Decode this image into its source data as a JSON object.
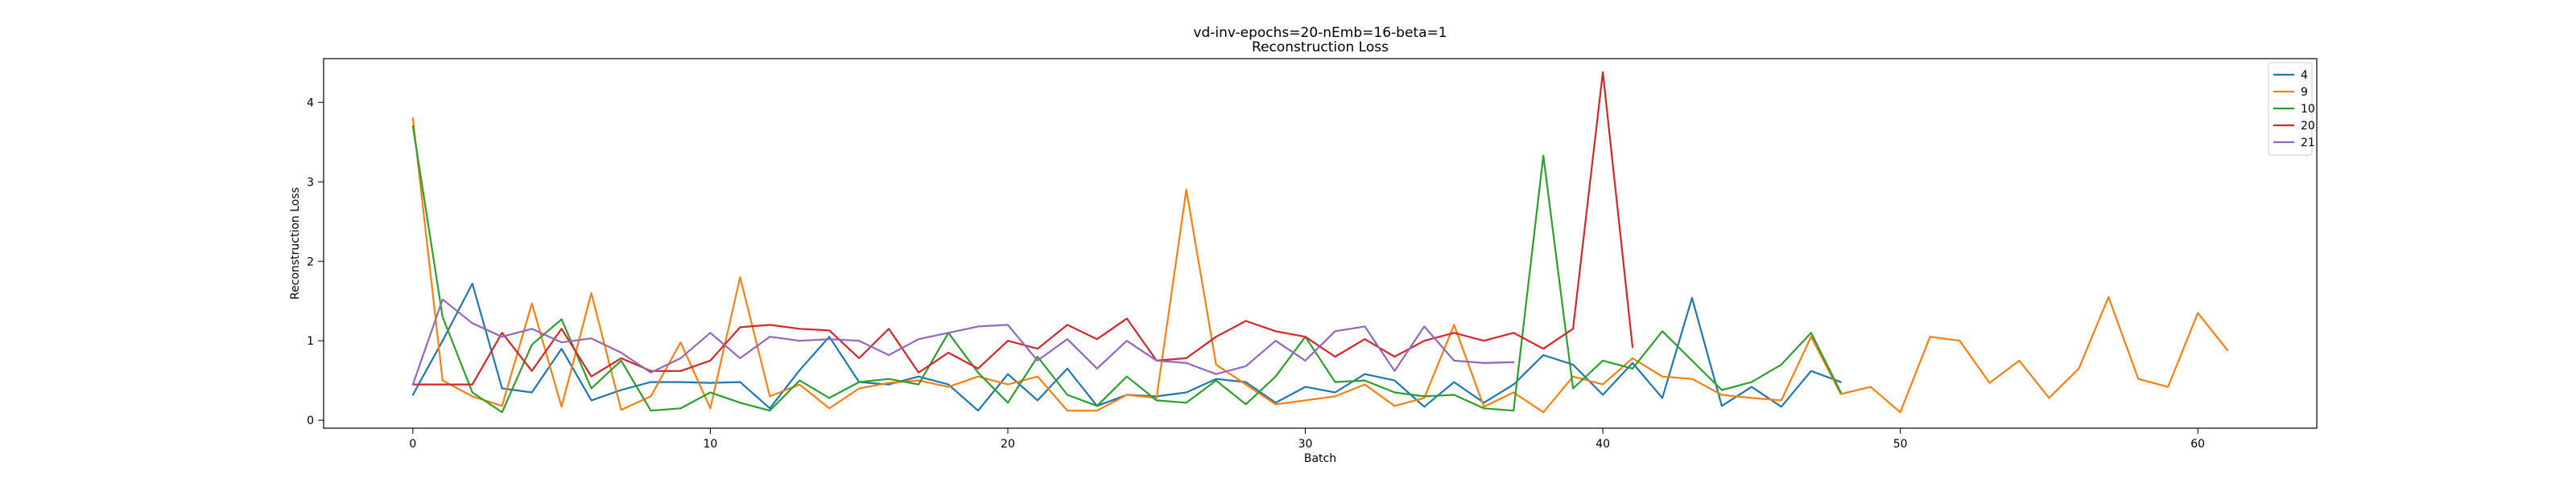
{
  "chart_data": {
    "type": "line",
    "title": "vd-inv-epochs=20-nEmb=16-beta=1",
    "subtitle": "Reconstruction Loss",
    "xlabel": "Batch",
    "ylabel": "Reconstruction Loss",
    "xlim": [
      -3,
      64
    ],
    "ylim": [
      -0.1,
      4.55
    ],
    "xticks": [
      0,
      10,
      20,
      30,
      40,
      50,
      60
    ],
    "yticks": [
      0,
      1,
      2,
      3,
      4
    ],
    "grid": false,
    "legend_position": "top-right",
    "series": [
      {
        "name": "4",
        "color": "#1f77b4",
        "y": [
          0.32,
          1.0,
          1.72,
          0.4,
          0.35,
          0.9,
          0.25,
          0.38,
          0.48,
          0.48,
          0.47,
          0.48,
          0.15,
          0.63,
          1.05,
          0.48,
          0.45,
          0.55,
          0.45,
          0.12,
          0.58,
          0.25,
          0.65,
          0.18,
          0.32,
          0.3,
          0.35,
          0.52,
          0.48,
          0.22,
          0.42,
          0.35,
          0.58,
          0.5,
          0.17,
          0.48,
          0.22,
          0.45,
          0.82,
          0.7,
          0.32,
          0.72,
          0.28,
          1.54,
          0.18,
          0.42,
          0.17,
          0.62,
          0.48
        ]
      },
      {
        "name": "9",
        "color": "#ff7f0e",
        "y": [
          3.8,
          0.5,
          0.3,
          0.18,
          1.47,
          0.17,
          1.6,
          0.13,
          0.3,
          0.98,
          0.15,
          1.8,
          0.3,
          0.45,
          0.15,
          0.4,
          0.47,
          0.5,
          0.42,
          0.55,
          0.45,
          0.55,
          0.12,
          0.12,
          0.32,
          0.28,
          2.9,
          0.7,
          0.45,
          0.2,
          0.25,
          0.3,
          0.45,
          0.18,
          0.28,
          1.2,
          0.17,
          0.35,
          0.1,
          0.55,
          0.45,
          0.78,
          0.55,
          0.52,
          0.32,
          0.28,
          0.25,
          1.05,
          0.33,
          0.42,
          0.1,
          1.05,
          1.0,
          0.47,
          0.75,
          0.28,
          0.65,
          1.55,
          0.52,
          0.42,
          1.35,
          0.88
        ]
      },
      {
        "name": "10",
        "color": "#2ca02c",
        "y": [
          3.7,
          1.3,
          0.35,
          0.1,
          0.95,
          1.27,
          0.4,
          0.75,
          0.12,
          0.15,
          0.35,
          0.22,
          0.12,
          0.5,
          0.28,
          0.48,
          0.52,
          0.45,
          1.1,
          0.6,
          0.22,
          0.8,
          0.32,
          0.18,
          0.55,
          0.25,
          0.22,
          0.5,
          0.2,
          0.55,
          1.05,
          0.48,
          0.5,
          0.35,
          0.3,
          0.32,
          0.15,
          0.12,
          3.33,
          0.4,
          0.75,
          0.65,
          1.12,
          0.75,
          0.38,
          0.48,
          0.7,
          1.1,
          0.35
        ]
      },
      {
        "name": "20",
        "color": "#d62728",
        "y": [
          0.45,
          0.45,
          0.45,
          1.1,
          0.62,
          1.15,
          0.55,
          0.78,
          0.62,
          0.62,
          0.75,
          1.17,
          1.2,
          1.15,
          1.13,
          0.78,
          1.15,
          0.6,
          0.85,
          0.65,
          1.0,
          0.9,
          1.2,
          1.02,
          1.28,
          0.75,
          0.78,
          1.05,
          1.25,
          1.12,
          1.05,
          0.8,
          1.02,
          0.8,
          1.0,
          1.1,
          1.0,
          1.1,
          0.9,
          1.15,
          4.38,
          0.92
        ]
      },
      {
        "name": "21",
        "color": "#9467bd",
        "y": [
          0.45,
          1.52,
          1.22,
          1.05,
          1.15,
          0.98,
          1.03,
          0.85,
          0.6,
          0.78,
          1.1,
          0.78,
          1.05,
          1.0,
          1.02,
          1.0,
          0.82,
          1.02,
          1.1,
          1.18,
          1.2,
          0.75,
          1.02,
          0.65,
          1.0,
          0.75,
          0.72,
          0.58,
          0.68,
          1.0,
          0.75,
          1.12,
          1.18,
          0.62,
          1.18,
          0.75,
          0.72,
          0.73
        ]
      }
    ]
  }
}
